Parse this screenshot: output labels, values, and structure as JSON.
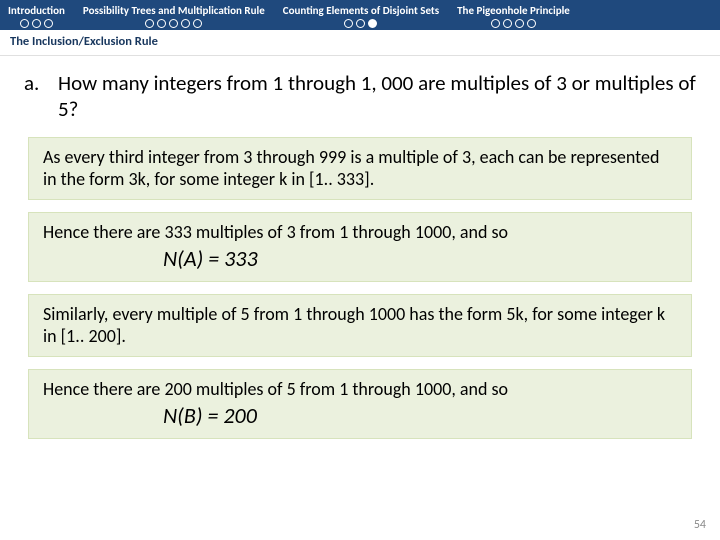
{
  "nav": {
    "sections": [
      {
        "title": "Introduction",
        "dots": 3,
        "filled": -1
      },
      {
        "title": "Possibility Trees and Multiplication Rule",
        "dots": 5,
        "filled": -1
      },
      {
        "title": "Counting Elements of Disjoint Sets",
        "dots": 3,
        "filled": 2
      },
      {
        "title": "The Pigeonhole Principle",
        "dots": 4,
        "filled": -1
      }
    ],
    "subtitle": "The Inclusion/Exclusion Rule"
  },
  "question": {
    "label": "a.",
    "text": "How many integers from 1 through 1, 000 are multiples of 3 or multiples of 5?"
  },
  "boxes": {
    "b1": "As every third integer from 3 through 999 is a multiple of 3, each can be represented in the form 3k, for some integer k in [1.. 333].",
    "b2_text": "Hence there are 333 multiples of 3 from 1 through 1000, and so",
    "b2_formula": "N(A) = 333",
    "b3": "Similarly, every multiple of 5 from 1 through 1000 has the form 5k, for some integer k in [1.. 200].",
    "b4_text": "Hence there are 200 multiples of 5 from 1 through 1000, and so",
    "b4_formula": "N(B) = 200"
  },
  "slide_number": "54",
  "colors": {
    "navbar_bg": "#1f497d",
    "box_bg": "#ebf1de",
    "box_border": "#d7e3bc"
  }
}
